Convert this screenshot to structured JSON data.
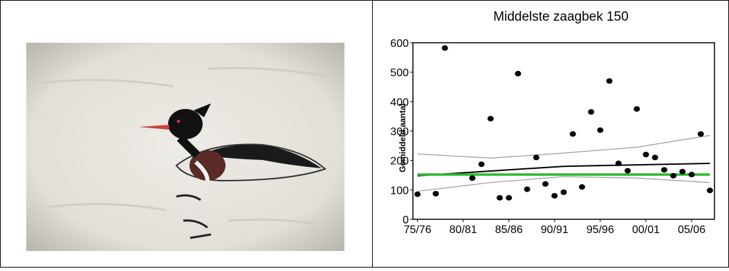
{
  "chart_data": {
    "type": "scatter",
    "title": "Middelste zaagbek 150",
    "ylabel": "Gemiddeld aantal",
    "x": [
      1975,
      1977,
      1978,
      1981,
      1982,
      1983,
      1984,
      1985,
      1986,
      1987,
      1988,
      1989,
      1990,
      1991,
      1992,
      1993,
      1994,
      1995,
      1996,
      1997,
      1998,
      1999,
      2000,
      2001,
      2002,
      2003,
      2004,
      2005,
      2006,
      2007
    ],
    "values": [
      85,
      87,
      582,
      140,
      187,
      342,
      73,
      73,
      495,
      102,
      210,
      120,
      80,
      92,
      290,
      110,
      365,
      303,
      470,
      190,
      165,
      375,
      220,
      210,
      168,
      148,
      162,
      152,
      290,
      98
    ],
    "color": "#000000",
    "lines": [
      {
        "color": "#000000",
        "x": [
          1975,
          1991,
          2007
        ],
        "values": [
          148,
          180,
          190
        ]
      },
      {
        "color": "#999999",
        "x": [
          1975,
          1983,
          1991,
          1999,
          2007
        ],
        "values": [
          222,
          208,
          225,
          245,
          285
        ]
      },
      {
        "color": "#999999",
        "x": [
          1975,
          1983,
          1991,
          1999,
          2007
        ],
        "values": [
          95,
          125,
          145,
          140,
          125
        ]
      },
      {
        "color": "#2db82d",
        "x": [
          1975,
          2007
        ],
        "values": [
          152,
          152
        ]
      }
    ],
    "xlim": [
      1974.5,
      2007.5
    ],
    "xticks": [
      {
        "value": 1975,
        "label": "75/76"
      },
      {
        "value": 1980,
        "label": "80/81"
      },
      {
        "value": 1985,
        "label": "85/86"
      },
      {
        "value": 1990,
        "label": "90/91"
      },
      {
        "value": 1995,
        "label": "95/96"
      },
      {
        "value": 2000,
        "label": "00/01"
      },
      {
        "value": 2005,
        "label": "05/06"
      }
    ],
    "ylim": [
      0,
      600
    ],
    "yticks": [
      0,
      100,
      200,
      300,
      400,
      500,
      600
    ]
  }
}
